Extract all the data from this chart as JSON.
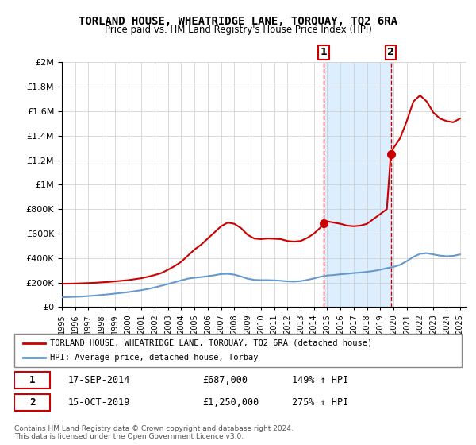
{
  "title": "TORLAND HOUSE, WHEATRIDGE LANE, TORQUAY, TQ2 6RA",
  "subtitle": "Price paid vs. HM Land Registry's House Price Index (HPI)",
  "legend_line1": "TORLAND HOUSE, WHEATRIDGE LANE, TORQUAY, TQ2 6RA (detached house)",
  "legend_line2": "HPI: Average price, detached house, Torbay",
  "annotation1_label": "1",
  "annotation1_date": "17-SEP-2014",
  "annotation1_price": "£687,000",
  "annotation1_hpi": "149% ↑ HPI",
  "annotation2_label": "2",
  "annotation2_date": "15-OCT-2019",
  "annotation2_price": "£1,250,000",
  "annotation2_hpi": "275% ↑ HPI",
  "footnote": "Contains HM Land Registry data © Crown copyright and database right 2024.\nThis data is licensed under the Open Government Licence v3.0.",
  "red_color": "#cc0000",
  "blue_color": "#6699cc",
  "shaded_color": "#ddeeff",
  "vline_color": "#cc0000",
  "background_color": "#ffffff",
  "ylim": [
    0,
    2000000
  ],
  "xlim_start": 1995.0,
  "xlim_end": 2025.5,
  "sale1_x": 2014.72,
  "sale1_y": 687000,
  "sale2_x": 2019.79,
  "sale2_y": 1250000,
  "red_x": [
    1995.0,
    1995.5,
    1996.0,
    1996.5,
    1997.0,
    1997.5,
    1998.0,
    1998.5,
    1999.0,
    1999.5,
    2000.0,
    2000.5,
    2001.0,
    2001.5,
    2002.0,
    2002.5,
    2003.0,
    2003.5,
    2004.0,
    2004.5,
    2005.0,
    2005.5,
    2006.0,
    2006.5,
    2007.0,
    2007.5,
    2008.0,
    2008.5,
    2009.0,
    2009.5,
    2010.0,
    2010.5,
    2011.0,
    2011.5,
    2012.0,
    2012.5,
    2013.0,
    2013.5,
    2014.0,
    2014.5,
    2014.72,
    2015.0,
    2015.5,
    2016.0,
    2016.5,
    2017.0,
    2017.5,
    2018.0,
    2018.5,
    2019.0,
    2019.5,
    2019.79,
    2020.0,
    2020.5,
    2021.0,
    2021.5,
    2022.0,
    2022.5,
    2023.0,
    2023.5,
    2024.0,
    2024.5,
    2025.0
  ],
  "red_y": [
    190000,
    191000,
    192000,
    194000,
    196000,
    198000,
    202000,
    205000,
    210000,
    215000,
    220000,
    228000,
    236000,
    248000,
    262000,
    278000,
    305000,
    335000,
    370000,
    420000,
    470000,
    510000,
    560000,
    610000,
    660000,
    690000,
    680000,
    645000,
    590000,
    560000,
    555000,
    560000,
    558000,
    555000,
    540000,
    535000,
    540000,
    565000,
    600000,
    650000,
    687000,
    700000,
    690000,
    680000,
    665000,
    660000,
    665000,
    680000,
    720000,
    760000,
    800000,
    1250000,
    1300000,
    1380000,
    1520000,
    1680000,
    1730000,
    1680000,
    1590000,
    1540000,
    1520000,
    1510000,
    1540000
  ],
  "blue_x": [
    1995.0,
    1995.5,
    1996.0,
    1996.5,
    1997.0,
    1997.5,
    1998.0,
    1998.5,
    1999.0,
    1999.5,
    2000.0,
    2000.5,
    2001.0,
    2001.5,
    2002.0,
    2002.5,
    2003.0,
    2003.5,
    2004.0,
    2004.5,
    2005.0,
    2005.5,
    2006.0,
    2006.5,
    2007.0,
    2007.5,
    2008.0,
    2008.5,
    2009.0,
    2009.5,
    2010.0,
    2010.5,
    2011.0,
    2011.5,
    2012.0,
    2012.5,
    2013.0,
    2013.5,
    2014.0,
    2014.5,
    2015.0,
    2015.5,
    2016.0,
    2016.5,
    2017.0,
    2017.5,
    2018.0,
    2018.5,
    2019.0,
    2019.5,
    2020.0,
    2020.5,
    2021.0,
    2021.5,
    2022.0,
    2022.5,
    2023.0,
    2023.5,
    2024.0,
    2024.5,
    2025.0
  ],
  "blue_y": [
    80000,
    82000,
    84000,
    86000,
    90000,
    94000,
    99000,
    104000,
    110000,
    116000,
    122000,
    130000,
    138000,
    148000,
    160000,
    174000,
    188000,
    203000,
    218000,
    232000,
    240000,
    245000,
    252000,
    260000,
    270000,
    272000,
    265000,
    250000,
    232000,
    222000,
    220000,
    220000,
    218000,
    215000,
    210000,
    208000,
    212000,
    222000,
    234000,
    248000,
    258000,
    262000,
    268000,
    272000,
    278000,
    282000,
    288000,
    295000,
    305000,
    318000,
    328000,
    345000,
    375000,
    410000,
    435000,
    440000,
    430000,
    420000,
    415000,
    418000,
    430000
  ]
}
